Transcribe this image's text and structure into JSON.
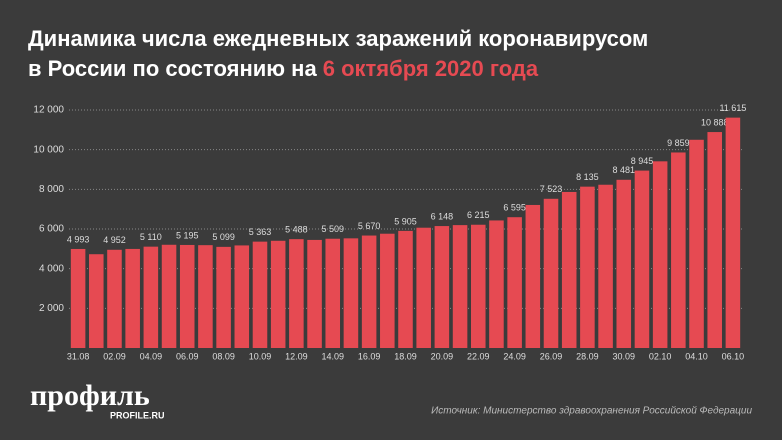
{
  "chart_data": {
    "type": "bar",
    "title": [
      "Динамика числа ежедневных заражений коронавирусом",
      "в России по состоянию на"
    ],
    "title_highlight": "6 октября 2020 года",
    "categories": [
      "31.08",
      null,
      "02.09",
      null,
      "04.09",
      null,
      "06.09",
      null,
      "08.09",
      null,
      "10.09",
      null,
      "12.09",
      null,
      "14.09",
      null,
      "16.09",
      null,
      "18.09",
      null,
      "20.09",
      null,
      "22.09",
      null,
      "24.09",
      null,
      "26.09",
      null,
      "28.09",
      null,
      "30.09",
      null,
      "02.10",
      null,
      "04.10",
      null,
      "06.10"
    ],
    "values": [
      4993,
      4729,
      4952,
      4995,
      5110,
      5205,
      5195,
      5185,
      5099,
      5172,
      5363,
      5406,
      5488,
      5449,
      5509,
      5529,
      5670,
      5762,
      5905,
      6065,
      6148,
      6196,
      6215,
      6431,
      6595,
      7212,
      7523,
      7867,
      8135,
      8232,
      8481,
      8945,
      9412,
      9859,
      10499,
      10888,
      11615
    ],
    "value_labels": [
      "4 993",
      null,
      "4 952",
      null,
      "5 110",
      null,
      "5 195",
      null,
      "5 099",
      null,
      "5 363",
      null,
      "5 488",
      null,
      "5 509",
      null,
      "5 670",
      null,
      "5 905",
      null,
      "6 148",
      null,
      "6 215",
      null,
      "6 595",
      null,
      "7 523",
      null,
      "8 135",
      null,
      "8 481",
      "8 945",
      null,
      "9 859",
      null,
      "10 888",
      "11 615"
    ],
    "color": "#e64a52",
    "ylim": [
      0,
      12000
    ],
    "yticks": [
      {
        "value": 2000,
        "label": "2 000"
      },
      {
        "value": 4000,
        "label": "4 000"
      },
      {
        "value": 6000,
        "label": "6 000"
      },
      {
        "value": 8000,
        "label": "8 000"
      },
      {
        "value": 10000,
        "label": "10 000"
      },
      {
        "value": 12000,
        "label": "12 000"
      }
    ],
    "grid": true,
    "source": "Источник: Министерство здравоохранения Российской Федерации",
    "logo": "профиль",
    "logo_url": "PROFILE.RU"
  }
}
